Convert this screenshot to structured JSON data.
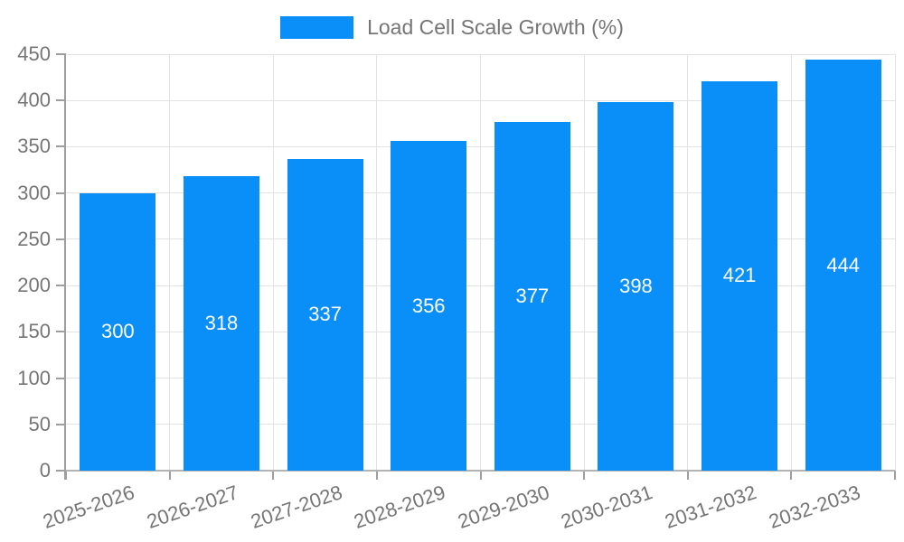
{
  "chart_data": {
    "type": "bar",
    "title": "Load Cell Scale Growth (%)",
    "legend_position": "top",
    "categories": [
      "2025-2026",
      "2026-2027",
      "2027-2028",
      "2028-2029",
      "2029-2030",
      "2030-2031",
      "2031-2032",
      "2032-2033"
    ],
    "series": [
      {
        "name": "Load Cell Scale Growth (%)",
        "values": [
          300,
          318,
          337,
          356,
          377,
          398,
          421,
          444
        ]
      }
    ],
    "value_labels": [
      "300",
      "318",
      "337",
      "356",
      "377",
      "398",
      "421",
      "444"
    ],
    "xlabel": "",
    "ylabel": "",
    "ylim": [
      0,
      450
    ],
    "y_ticks": [
      "0",
      "50",
      "100",
      "150",
      "200",
      "250",
      "300",
      "350",
      "400",
      "450"
    ],
    "grid": "on",
    "colors": {
      "bar": "#0a8ff9",
      "axis_text": "#757575",
      "value_text": "#ffffff",
      "grid_line": "#e3e3e3",
      "axis_line": "#9e9e9e",
      "baseline": "#b3b3b3"
    }
  }
}
